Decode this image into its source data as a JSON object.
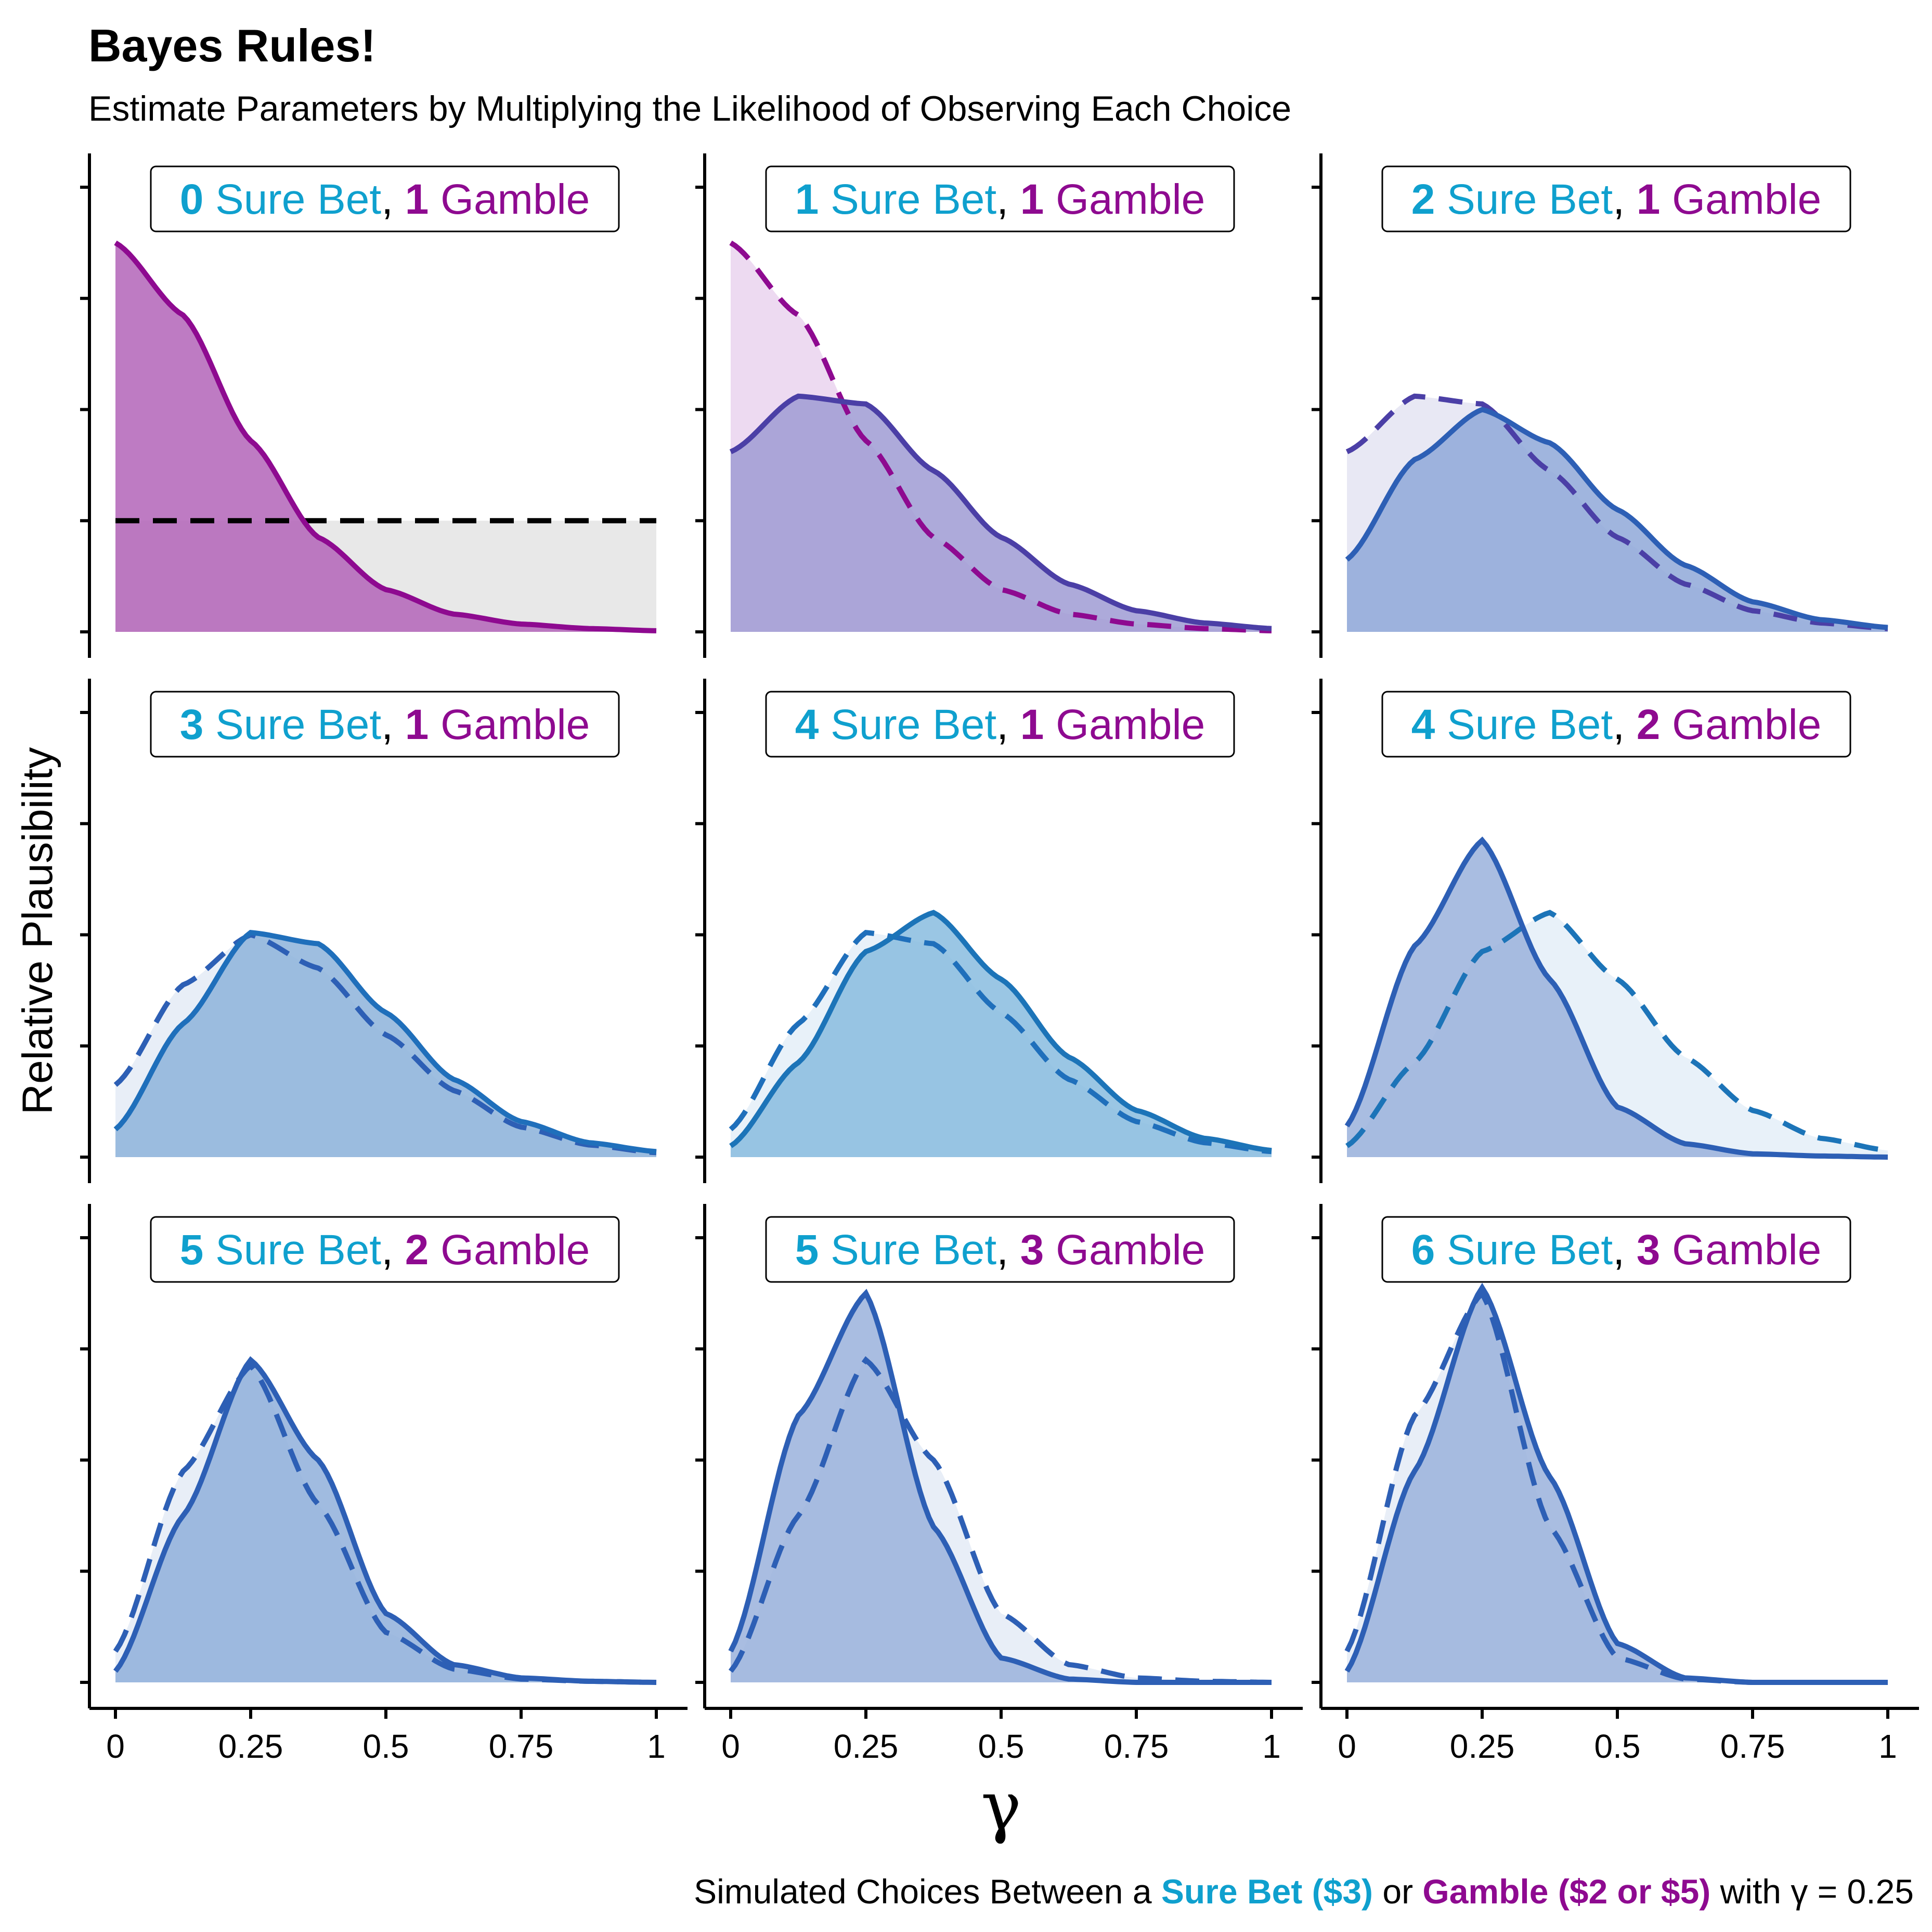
{
  "title": "Bayes Rules!",
  "subtitle": "Estimate Parameters by Multiplying the Likelihood of Observing Each Choice",
  "caption": {
    "prefix": "Simulated Choices Between a ",
    "sure": "Sure Bet ($3)",
    "mid": " or ",
    "gamble": "Gamble ($2 or $5)",
    "suffix": " with γ = 0.25"
  },
  "colors": {
    "sure": "#0FA0CE",
    "gamble": "#8E0A90",
    "blue": "#2D63B8",
    "gray_fill": "#E6E6E6"
  },
  "chart_data": {
    "type": "area",
    "xlabel": "γ",
    "ylabel": "Relative Plausibility",
    "xlim": [
      0,
      1
    ],
    "x_ticks": [
      "0",
      "0.25",
      "0.5",
      "0.75",
      "1"
    ],
    "y_tick_count": 5,
    "y_tick_labels_shown": false,
    "legend": "none",
    "panels": [
      {
        "sure": "0",
        "gamble": "1",
        "label_sure": " Sure Bet",
        "label_sep": ", ",
        "label_gamble": " Gamble",
        "prior_color": "#000000",
        "prior_fill": "#E6E6E6",
        "post_color": "#8E0A90",
        "post_fill": "#B364B8",
        "x": [
          0,
          0.125,
          0.25,
          0.375,
          0.5,
          0.625,
          0.75,
          0.875,
          1
        ],
        "prior": [
          1.0,
          1.0,
          1.0,
          1.0,
          1.0,
          1.0,
          1.0,
          1.0,
          1.0
        ],
        "posterior": [
          3.5,
          2.85,
          1.72,
          0.85,
          0.38,
          0.16,
          0.07,
          0.03,
          0.01
        ]
      },
      {
        "sure": "1",
        "gamble": "1",
        "label_sure": " Sure Bet",
        "label_sep": ", ",
        "label_gamble": " Gamble",
        "prior_color": "#8E0A90",
        "prior_fill": "#EBD6EF",
        "post_color": "#4B3FA6",
        "post_fill": "#9F9BD4",
        "x": [
          0,
          0.125,
          0.25,
          0.375,
          0.5,
          0.625,
          0.75,
          0.875,
          1
        ],
        "prior": [
          3.5,
          2.85,
          1.72,
          0.85,
          0.38,
          0.16,
          0.07,
          0.03,
          0.01
        ],
        "posterior": [
          1.62,
          2.12,
          2.05,
          1.45,
          0.85,
          0.43,
          0.19,
          0.08,
          0.03
        ]
      },
      {
        "sure": "2",
        "gamble": "1",
        "label_sure": " Sure Bet",
        "label_sep": ", ",
        "label_gamble": " Gamble",
        "prior_color": "#4B3FA6",
        "prior_fill": "#E6E5F3",
        "post_color": "#2D5FB5",
        "post_fill": "#8FA8D8",
        "x": [
          0,
          0.125,
          0.25,
          0.375,
          0.5,
          0.625,
          0.75,
          0.875,
          1
        ],
        "prior": [
          1.62,
          2.12,
          2.05,
          1.45,
          0.85,
          0.43,
          0.19,
          0.08,
          0.03
        ],
        "posterior": [
          0.65,
          1.55,
          2.0,
          1.7,
          1.1,
          0.6,
          0.27,
          0.11,
          0.04
        ]
      },
      {
        "sure": "3",
        "gamble": "1",
        "label_sure": " Sure Bet",
        "label_sep": ", ",
        "label_gamble": " Gamble",
        "prior_color": "#2D5FB5",
        "prior_fill": "#E6ECF6",
        "post_color": "#1F6FBB",
        "post_fill": "#8DB3DB",
        "x": [
          0,
          0.125,
          0.25,
          0.375,
          0.5,
          0.625,
          0.75,
          0.875,
          1
        ],
        "prior": [
          0.65,
          1.55,
          2.0,
          1.7,
          1.1,
          0.6,
          0.27,
          0.11,
          0.04
        ],
        "posterior": [
          0.25,
          1.2,
          2.02,
          1.92,
          1.3,
          0.7,
          0.32,
          0.13,
          0.05
        ]
      },
      {
        "sure": "4",
        "gamble": "1",
        "label_sure": " Sure Bet",
        "label_sep": ", ",
        "label_gamble": " Gamble",
        "prior_color": "#1F6FBB",
        "prior_fill": "#E6EFF8",
        "post_color": "#1C74B8",
        "post_fill": "#88BCDF",
        "x": [
          0,
          0.125,
          0.25,
          0.375,
          0.5,
          0.625,
          0.75,
          0.875,
          1
        ],
        "prior": [
          0.25,
          1.2,
          2.02,
          1.92,
          1.3,
          0.7,
          0.32,
          0.13,
          0.05
        ],
        "posterior": [
          0.1,
          0.85,
          1.85,
          2.2,
          1.6,
          0.9,
          0.42,
          0.17,
          0.06
        ]
      },
      {
        "sure": "4",
        "gamble": "2",
        "label_sure": " Sure Bet",
        "label_sep": ", ",
        "label_gamble": " Gamble",
        "prior_color": "#1C74B8",
        "prior_fill": "#E6F0F8",
        "post_color": "#2D5FB5",
        "post_fill": "#9AB1DC",
        "x": [
          0,
          0.125,
          0.25,
          0.375,
          0.5,
          0.625,
          0.75,
          0.875,
          1
        ],
        "prior": [
          0.1,
          0.85,
          1.85,
          2.2,
          1.6,
          0.9,
          0.42,
          0.17,
          0.06
        ],
        "posterior": [
          0.28,
          1.9,
          2.85,
          1.6,
          0.45,
          0.12,
          0.03,
          0.01,
          0.0
        ]
      },
      {
        "sure": "5",
        "gamble": "2",
        "label_sure": " Sure Bet",
        "label_sep": ", ",
        "label_gamble": " Gamble",
        "prior_color": "#2D5FB5",
        "prior_fill": "#E6ECF6",
        "post_color": "#2D5FB5",
        "post_fill": "#8FAFDB",
        "x": [
          0,
          0.125,
          0.25,
          0.375,
          0.5,
          0.625,
          0.75,
          0.875,
          1
        ],
        "prior": [
          0.28,
          1.9,
          2.85,
          1.6,
          0.45,
          0.12,
          0.03,
          0.01,
          0.0
        ],
        "posterior": [
          0.1,
          1.5,
          2.9,
          2.0,
          0.62,
          0.16,
          0.04,
          0.01,
          0.0
        ]
      },
      {
        "sure": "5",
        "gamble": "3",
        "label_sure": " Sure Bet",
        "label_sep": ", ",
        "label_gamble": " Gamble",
        "prior_color": "#2D5FB5",
        "prior_fill": "#E6ECF6",
        "post_color": "#2D5FB5",
        "post_fill": "#9AB1DC",
        "x": [
          0,
          0.125,
          0.25,
          0.375,
          0.5,
          0.625,
          0.75,
          0.875,
          1
        ],
        "prior": [
          0.1,
          1.5,
          2.9,
          2.0,
          0.62,
          0.16,
          0.04,
          0.01,
          0.0
        ],
        "posterior": [
          0.28,
          2.4,
          3.5,
          1.4,
          0.22,
          0.03,
          0.0,
          0.0,
          0.0
        ]
      },
      {
        "sure": "6",
        "gamble": "3",
        "label_sure": " Sure Bet",
        "label_sep": ", ",
        "label_gamble": " Gamble",
        "prior_color": "#2D5FB5",
        "prior_fill": "#E6ECF6",
        "post_color": "#2D5FB5",
        "post_fill": "#9AB1DC",
        "x": [
          0,
          0.125,
          0.25,
          0.375,
          0.5,
          0.625,
          0.75,
          0.875,
          1
        ],
        "prior": [
          0.28,
          2.4,
          3.5,
          1.4,
          0.22,
          0.03,
          0.0,
          0.0,
          0.0
        ],
        "posterior": [
          0.1,
          1.9,
          3.55,
          1.85,
          0.35,
          0.04,
          0.0,
          0.0,
          0.0
        ]
      }
    ]
  }
}
